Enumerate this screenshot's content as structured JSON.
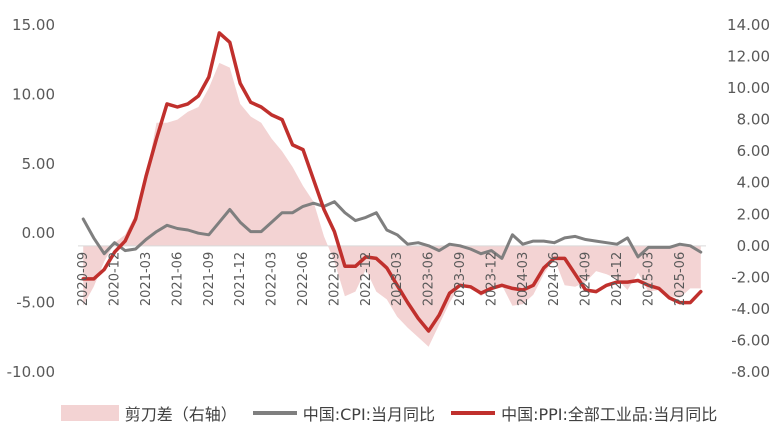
{
  "chart_data": {
    "type": "line",
    "x": [
      "2020-09",
      "2020-10",
      "2020-11",
      "2020-12",
      "2021-01",
      "2021-02",
      "2021-03",
      "2021-04",
      "2021-05",
      "2021-06",
      "2021-07",
      "2021-08",
      "2021-09",
      "2021-10",
      "2021-11",
      "2021-12",
      "2022-01",
      "2022-02",
      "2022-03",
      "2022-04",
      "2022-05",
      "2022-06",
      "2022-07",
      "2022-08",
      "2022-09",
      "2022-10",
      "2022-11",
      "2022-12",
      "2023-01",
      "2023-02",
      "2023-03",
      "2023-04",
      "2023-05",
      "2023-06",
      "2023-07",
      "2023-08",
      "2023-09",
      "2023-10",
      "2023-11",
      "2023-12",
      "2024-01",
      "2024-02",
      "2024-03",
      "2024-04",
      "2024-05",
      "2024-06",
      "2024-07",
      "2024-08",
      "2024-09",
      "2024-10",
      "2024-11",
      "2024-12",
      "2025-01",
      "2025-02",
      "2025-03",
      "2025-04",
      "2025-05",
      "2025-06",
      "2025-07",
      "2025-08"
    ],
    "x_tick_labels": [
      "2020-09",
      "2020-12",
      "2021-03",
      "2021-06",
      "2021-09",
      "2021-12",
      "2022-03",
      "2022-06",
      "2022-09",
      "2022-12",
      "2023-03",
      "2023-06",
      "2023-09",
      "2023-12",
      "2024-03",
      "2024-06",
      "2024-09",
      "2024-12",
      "2025-03",
      "2025-06"
    ],
    "left_axis": {
      "min": -10,
      "max": 15,
      "ticks": [
        "15.00",
        "10.00",
        "5.00",
        "0.00",
        "-5.00",
        "-10.00"
      ]
    },
    "right_axis": {
      "min": -8,
      "max": 14,
      "ticks": [
        "14.00",
        "12.00",
        "10.00",
        "8.00",
        "6.00",
        "4.00",
        "2.00",
        "0.00",
        "-2.00",
        "-4.00",
        "-6.00",
        "-8.00"
      ]
    },
    "series": [
      {
        "name": "剪刀差（右轴）",
        "kind": "area",
        "axis": "right",
        "color": "#f3d3d3",
        "values": [
          -3.8,
          -2.6,
          -1.0,
          0.2,
          0.7,
          2.0,
          4.3,
          7.8,
          7.8,
          8.0,
          8.5,
          8.8,
          10.0,
          11.6,
          11.3,
          9.0,
          8.2,
          7.8,
          6.8,
          6.0,
          5.0,
          3.8,
          2.8,
          0.6,
          -1.0,
          -3.2,
          -2.9,
          -1.5,
          -2.9,
          -3.4,
          -4.5,
          -5.2,
          -5.8,
          -6.4,
          -5.0,
          -3.6,
          -2.5,
          -2.6,
          -3.2,
          -2.7,
          -2.5,
          -3.8,
          -3.7,
          -3.1,
          -1.8,
          -0.8,
          -2.5,
          -2.6,
          -2.3,
          -1.6,
          -1.8,
          -2.1,
          -2.8,
          -1.7,
          -2.9,
          -2.8,
          -3.2,
          -3.3,
          -2.7,
          -2.7
        ]
      },
      {
        "name": "中国:CPI:当月同比",
        "kind": "line",
        "axis": "right",
        "color": "#7f7f7f",
        "values": [
          1.7,
          0.5,
          -0.5,
          0.2,
          -0.3,
          -0.2,
          0.4,
          0.9,
          1.3,
          1.1,
          1.0,
          0.8,
          0.7,
          1.5,
          2.3,
          1.5,
          0.9,
          0.9,
          1.5,
          2.1,
          2.1,
          2.5,
          2.7,
          2.5,
          2.8,
          2.1,
          1.6,
          1.8,
          2.1,
          1.0,
          0.7,
          0.1,
          0.2,
          0.0,
          -0.3,
          0.1,
          0.0,
          -0.2,
          -0.5,
          -0.3,
          -0.8,
          0.7,
          0.1,
          0.3,
          0.3,
          0.2,
          0.5,
          0.6,
          0.4,
          0.3,
          0.2,
          0.1,
          0.5,
          -0.7,
          -0.1,
          -0.1,
          -0.1,
          0.1,
          0.0,
          -0.4
        ]
      },
      {
        "name": "中国:PPI:全部工业品:当月同比",
        "kind": "line",
        "axis": "right",
        "color": "#c0302d",
        "values": [
          -2.1,
          -2.1,
          -1.5,
          -0.4,
          0.3,
          1.7,
          4.4,
          6.8,
          9.0,
          8.8,
          9.0,
          9.5,
          10.7,
          13.5,
          12.9,
          10.3,
          9.1,
          8.8,
          8.3,
          8.0,
          6.4,
          6.1,
          4.2,
          2.3,
          0.9,
          -1.3,
          -1.3,
          -0.7,
          -0.8,
          -1.4,
          -2.5,
          -3.6,
          -4.6,
          -5.4,
          -4.4,
          -3.0,
          -2.5,
          -2.6,
          -3.0,
          -2.7,
          -2.5,
          -2.7,
          -2.8,
          -2.5,
          -1.4,
          -0.8,
          -0.8,
          -1.8,
          -2.8,
          -2.9,
          -2.5,
          -2.3,
          -2.3,
          -2.2,
          -2.5,
          -2.7,
          -3.3,
          -3.6,
          -3.6,
          -2.9
        ]
      }
    ],
    "legend_position": "bottom",
    "grid": false
  }
}
